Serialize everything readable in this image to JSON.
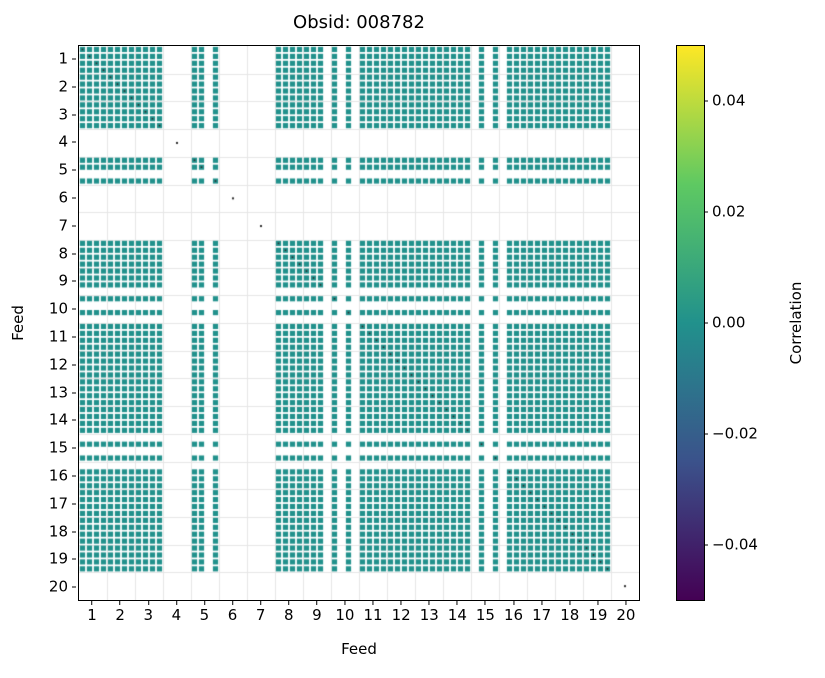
{
  "chart_data": {
    "type": "heatmap",
    "title": "Obsid: 008782",
    "xlabel": "Feed",
    "ylabel": "Feed",
    "x_categories": [
      1,
      2,
      3,
      4,
      5,
      6,
      7,
      8,
      9,
      10,
      11,
      12,
      13,
      14,
      15,
      16,
      17,
      18,
      19,
      20
    ],
    "y_categories": [
      1,
      2,
      3,
      4,
      5,
      6,
      7,
      8,
      9,
      10,
      11,
      12,
      13,
      14,
      15,
      16,
      17,
      18,
      19,
      20
    ],
    "bands_per_feed": 4,
    "value_at_present_cells": 0.0,
    "colormap": "viridis",
    "vmin": -0.05,
    "vmax": 0.05,
    "colorbar_label": "Correlation",
    "colorbar_ticks": [
      {
        "value": 0.04,
        "label": "0.04"
      },
      {
        "value": 0.02,
        "label": "0.02"
      },
      {
        "value": 0.0,
        "label": "0.00"
      },
      {
        "value": -0.02,
        "label": "−0.02"
      },
      {
        "value": -0.04,
        "label": "−0.04"
      }
    ],
    "missing_feeds": [
      4,
      6,
      7,
      20
    ],
    "missing_bands": [
      {
        "feed": 5,
        "band": 3
      },
      {
        "feed": 9,
        "band": 4
      },
      {
        "feed": 10,
        "band": 2
      },
      {
        "feed": 10,
        "band": 4
      },
      {
        "feed": 15,
        "band": 1
      },
      {
        "feed": 15,
        "band": 3
      },
      {
        "feed": 16,
        "band": 1
      }
    ],
    "diagonal_marks": true,
    "grid": true,
    "style": {
      "cell_color": "#21918c",
      "grid_color": "#e6e6e6",
      "diagonal_color": "#2f2f2f",
      "background": "#ffffff",
      "gradient_stops": [
        "#440154",
        "#3b528b",
        "#21918c",
        "#5ec962",
        "#fde725"
      ]
    }
  }
}
